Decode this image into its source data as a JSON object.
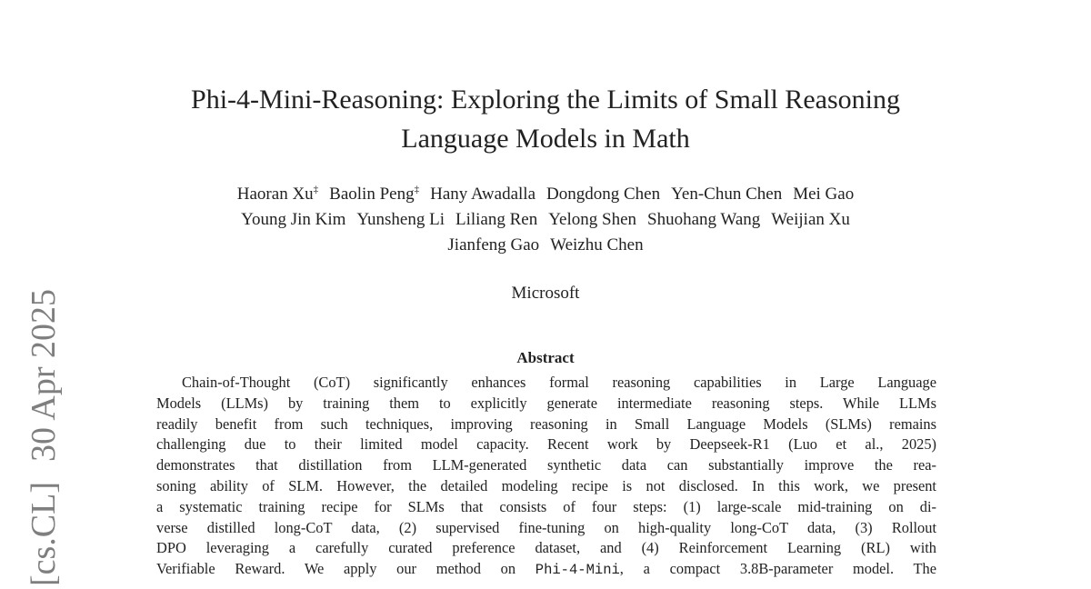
{
  "side_stamp": {
    "category": "[cs.CL]",
    "date": "30 Apr 2025"
  },
  "header": {
    "title_lines": [
      "Phi-4-Mini-Reasoning: Exploring the Limits of Small Reasoning",
      "Language Models in Math"
    ],
    "author_lines": [
      [
        {
          "name": "Haoran Xu",
          "mark": "‡"
        },
        {
          "name": "Baolin Peng",
          "mark": "‡"
        },
        {
          "name": "Hany Awadalla"
        },
        {
          "name": "Dongdong Chen"
        },
        {
          "name": "Yen-Chun Chen"
        },
        {
          "name": "Mei Gao"
        }
      ],
      [
        {
          "name": "Young Jin Kim"
        },
        {
          "name": "Yunsheng Li"
        },
        {
          "name": "Liliang Ren"
        },
        {
          "name": "Yelong Shen"
        },
        {
          "name": "Shuohang Wang"
        },
        {
          "name": "Weijian Xu"
        }
      ],
      [
        {
          "name": "Jianfeng Gao"
        },
        {
          "name": "Weizhu Chen"
        }
      ]
    ],
    "affiliation": "Microsoft"
  },
  "abstract": {
    "heading": "Abstract",
    "lines": [
      "Chain-of-Thought (CoT) significantly enhances formal reasoning capabilities in Large Language",
      "Models (LLMs) by training them to explicitly generate intermediate reasoning steps.  While LLMs",
      "readily benefit from such techniques, improving reasoning in Small Language Models (SLMs) remains",
      "challenging due to their limited model capacity.  Recent work by Deepseek-R1 (Luo et al., 2025)",
      "demonstrates that distillation from LLM-generated synthetic data can substantially improve the rea-",
      "soning ability of SLM. However, the detailed modeling recipe is not disclosed. In this work, we present",
      "a systematic training recipe for SLMs that consists of four steps: (1) large-scale mid-training on di-",
      "verse distilled long-CoT data, (2) supervised fine-tuning on high-quality long-CoT data, (3) Rollout",
      "DPO leveraging a carefully curated preference dataset, and (4) Reinforcement Learning (RL) with"
    ],
    "last_line": {
      "before": "Verifiable Reward.  We apply our method on ",
      "code": "Phi-4-Mini",
      "after": ", a compact 3.8B-parameter model.  The"
    }
  }
}
